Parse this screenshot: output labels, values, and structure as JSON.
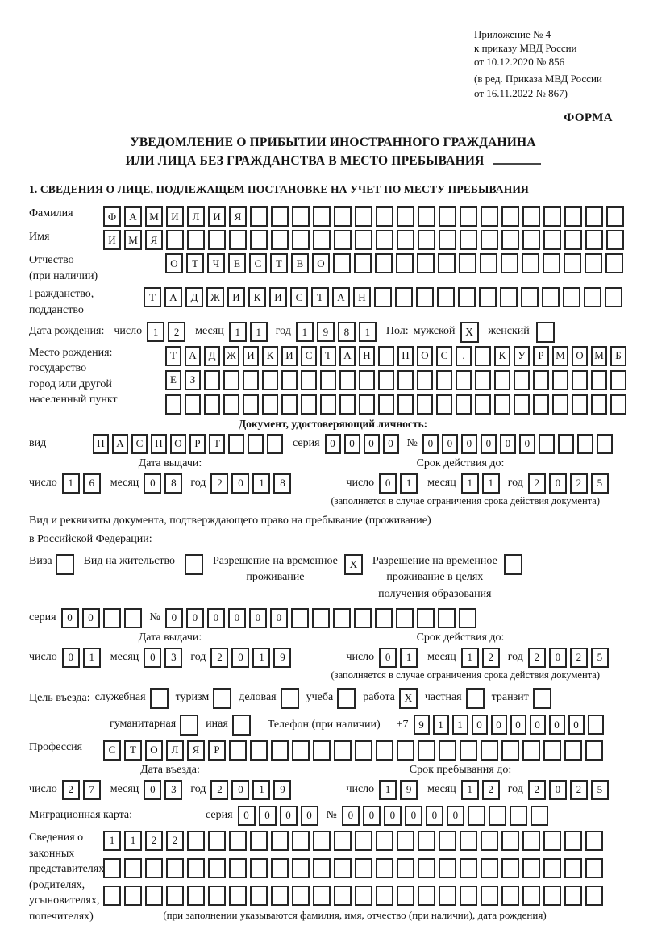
{
  "header": {
    "lines": [
      "Приложение № 4",
      "к приказу МВД России",
      "от 10.12.2020 № 856"
    ],
    "amendment_lines": [
      "(в ред. Приказа МВД России",
      "от 16.11.2022 № 867)"
    ],
    "form_label": "ФОРМА"
  },
  "title": {
    "line1": "УВЕДОМЛЕНИЕ О ПРИБЫТИИ ИНОСТРАННОГО ГРАЖДАНИНА",
    "line2": "ИЛИ ЛИЦА БЕЗ ГРАЖДАНСТВА В МЕСТО ПРЕБЫВАНИЯ"
  },
  "section1_heading": "1. СВЕДЕНИЯ О ЛИЦЕ, ПОДЛЕЖАЩЕМ ПОСТАНОВКЕ НА УЧЕТ ПО МЕСТУ ПРЕБЫВАНИЯ",
  "person": {
    "surname": {
      "label": "Фамилия",
      "value": "ФАМИЛИЯ",
      "length": 25
    },
    "name": {
      "label": "Имя",
      "value": "ИМЯ",
      "length": 25
    },
    "patronymic": {
      "label": "Отчество",
      "sublabel": "(при наличии)",
      "value": "ОТЧЕСТВО",
      "length": 22
    },
    "citizenship": {
      "label": "Гражданство,",
      "sublabel": "подданство",
      "value": "ТАДЖИКИСТАН",
      "length": 23
    },
    "birth_date": {
      "label": "Дата рождения:",
      "day_label": "число",
      "day": "12",
      "month_label": "месяц",
      "month": "11",
      "year_label": "год",
      "year": "1981"
    },
    "sex": {
      "label": "Пол:",
      "male_label": "мужской",
      "male": true,
      "female_label": "женский",
      "female": false
    },
    "birth_place": {
      "label_lines": [
        "Место рождения:",
        "государство",
        "город или другой",
        "населенный пункт"
      ],
      "rows": [
        {
          "value": "ТАДЖИКИСТАН ПОС. КУРМОМБ",
          "length": 24
        },
        {
          "value": "ЕЗ",
          "length": 24
        },
        {
          "value": "",
          "length": 24
        }
      ]
    }
  },
  "identity_doc": {
    "heading": "Документ, удостоверяющий личность:",
    "kind": {
      "label": "вид",
      "value": "ПАСПОРТ",
      "length": 10
    },
    "series": {
      "label": "серия",
      "value": "0000",
      "length": 4
    },
    "number": {
      "label": "№",
      "value": "000000",
      "length": 10
    },
    "issue": {
      "title": "Дата выдачи:",
      "day_label": "число",
      "day": "16",
      "month_label": "месяц",
      "month": "08",
      "year_label": "год",
      "year": "2018"
    },
    "valid_until": {
      "title": "Срок действия до:",
      "day_label": "число",
      "day": "01",
      "month_label": "месяц",
      "month": "11",
      "year_label": "год",
      "year": "2025"
    },
    "note": "(заполняется в случае ограничения срока действия документа)"
  },
  "residence_doc": {
    "line1": "Вид и реквизиты документа, подтверждающего право на пребывание (проживание)",
    "line2": "в Российской Федерации:",
    "options": [
      {
        "lines": [
          "Виза"
        ],
        "checked": false
      },
      {
        "lines": [
          "Вид на жительство"
        ],
        "checked": false
      },
      {
        "lines": [
          "Разрешение на временное",
          "проживание"
        ],
        "checked": true
      },
      {
        "lines": [
          "Разрешение на временное",
          "проживание в целях",
          "получения образования"
        ],
        "checked": false
      }
    ],
    "series": {
      "label": "серия",
      "value": "00",
      "length": 4
    },
    "number": {
      "label": "№",
      "value": "000000",
      "length": 15
    },
    "issue": {
      "title": "Дата выдачи:",
      "day_label": "число",
      "day": "01",
      "month_label": "месяц",
      "month": "03",
      "year_label": "год",
      "year": "2019"
    },
    "valid_until": {
      "title": "Срок действия до:",
      "day_label": "число",
      "day": "01",
      "month_label": "месяц",
      "month": "12",
      "year_label": "год",
      "year": "2025"
    },
    "note": "(заполняется в случае ограничения срока действия документа)"
  },
  "visit": {
    "purpose_label": "Цель въезда:",
    "purposes": [
      {
        "label": "служебная",
        "checked": false
      },
      {
        "label": "туризм",
        "checked": false
      },
      {
        "label": "деловая",
        "checked": false
      },
      {
        "label": "учеба",
        "checked": false
      },
      {
        "label": "работа",
        "checked": true
      },
      {
        "label": "частная",
        "checked": false
      },
      {
        "label": "транзит",
        "checked": false
      },
      {
        "label": "гуманитарная",
        "checked": false
      },
      {
        "label": "иная",
        "checked": false
      }
    ],
    "phone": {
      "label": "Телефон (при наличии)",
      "prefix": "+7",
      "value": "911000000",
      "length": 10
    },
    "profession": {
      "label": "Профессия",
      "value": "СТОЛЯР",
      "length": 24
    },
    "entry_date": {
      "title": "Дата въезда:",
      "day_label": "число",
      "day": "27",
      "month_label": "месяц",
      "month": "03",
      "year_label": "год",
      "year": "2019"
    },
    "stay_until": {
      "title": "Срок пребывания до:",
      "day_label": "число",
      "day": "19",
      "month_label": "месяц",
      "month": "12",
      "year_label": "год",
      "year": "2025"
    }
  },
  "migration_card": {
    "label": "Миграционная карта:",
    "series": {
      "label": "серия",
      "value": "0000",
      "length": 4
    },
    "number": {
      "label": "№",
      "value": "000000",
      "length": 10
    }
  },
  "representatives": {
    "label_lines": [
      "Сведения о",
      "законных",
      "представителях",
      "(родителях,",
      "усыновителях,",
      "попечителях)"
    ],
    "rows": [
      {
        "value": "1122",
        "length": 24
      },
      {
        "value": "",
        "length": 24
      },
      {
        "value": "",
        "length": 24
      }
    ],
    "note": "(при заполнении указываются фамилия, имя, отчество (при наличии), дата рождения)"
  }
}
